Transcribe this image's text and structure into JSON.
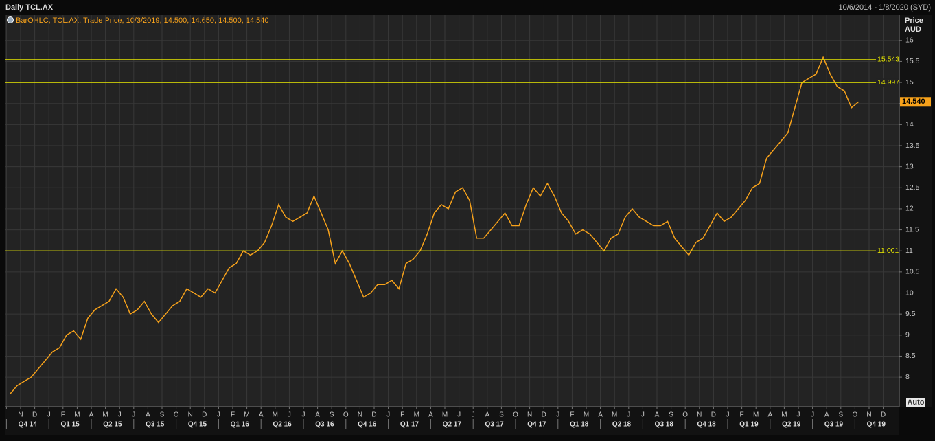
{
  "chart_data": {
    "type": "line",
    "title": "Daily TCL.AX",
    "subtitle": "10/6/2014 - 1/8/2020 (SYD)",
    "legend_text": "BarOHLC, TCL.AX, Trade Price, 10/3/2019, 14.500, 14.650, 14.500, 14.540",
    "y_label": "Price",
    "y_unit": "AUD",
    "button": "Auto",
    "ylim": [
      7.3,
      16.6
    ],
    "yticks": [
      8,
      8.5,
      9,
      9.5,
      10,
      10.5,
      11,
      11.5,
      12,
      12.5,
      13,
      13.5,
      14,
      14.5,
      15,
      15.5,
      16
    ],
    "grid": true,
    "hlines": [
      15.543,
      14.997,
      11.001
    ],
    "hline_color": "#e8e800",
    "last_price": {
      "value": 14.54,
      "label": "14.540"
    },
    "categories": [
      null,
      null,
      "N",
      null,
      "D",
      null,
      "J",
      null,
      "F",
      null,
      "M",
      null,
      "A",
      null,
      "M",
      null,
      "J",
      null,
      "J",
      null,
      "A",
      null,
      "S",
      null,
      "O",
      null,
      "N",
      null,
      "D",
      null,
      "J",
      null,
      "F",
      null,
      "M",
      null,
      "A",
      null,
      "M",
      null,
      "J",
      null,
      "J",
      null,
      "A",
      null,
      "S",
      null,
      "O",
      null,
      "N",
      null,
      "D",
      null,
      "J",
      null,
      "F",
      null,
      "M",
      null,
      "A",
      null,
      "M",
      null,
      "J",
      null,
      "J",
      null,
      "A",
      null,
      "S",
      null,
      "O",
      null,
      "N",
      null,
      "D",
      null,
      "J",
      null,
      "F",
      null,
      "M",
      null,
      "A",
      null,
      "M",
      null,
      "J",
      null,
      "J",
      null,
      "A",
      null,
      "S",
      null,
      "O",
      null,
      "N",
      null,
      "D",
      null,
      "J",
      null,
      "F",
      null,
      "M",
      null,
      "A",
      null,
      "M",
      null,
      "J",
      null,
      "J",
      null,
      "A",
      null,
      "S",
      null,
      "O",
      null,
      "N",
      null,
      "D",
      null
    ],
    "quarters": [
      "Q4 14",
      "Q1 15",
      "Q2 15",
      "Q3 15",
      "Q4 15",
      "Q1 16",
      "Q2 16",
      "Q3 16",
      "Q4 16",
      "Q1 17",
      "Q2 17",
      "Q3 17",
      "Q4 17",
      "Q1 18",
      "Q2 18",
      "Q3 18",
      "Q4 18",
      "Q1 19",
      "Q2 19",
      "Q3 19",
      "Q4 19"
    ],
    "series": [
      {
        "color": "#f7a21b",
        "values": [
          7.6,
          7.8,
          7.9,
          8.0,
          8.2,
          8.4,
          8.6,
          8.7,
          9.0,
          9.1,
          8.9,
          9.4,
          9.6,
          9.7,
          9.8,
          10.1,
          9.9,
          9.5,
          9.6,
          9.8,
          9.5,
          9.3,
          9.5,
          9.7,
          9.8,
          10.1,
          10.0,
          9.9,
          10.1,
          10.0,
          10.3,
          10.6,
          10.7,
          11.0,
          10.9,
          11.0,
          11.2,
          11.6,
          12.1,
          11.8,
          11.7,
          11.8,
          11.9,
          12.3,
          11.9,
          11.5,
          10.7,
          11.0,
          10.7,
          10.3,
          9.9,
          10.0,
          10.2,
          10.2,
          10.3,
          10.1,
          10.7,
          10.8,
          11.0,
          11.4,
          11.9,
          12.1,
          12.0,
          12.4,
          12.5,
          12.2,
          11.3,
          11.3,
          11.5,
          11.7,
          11.9,
          11.6,
          11.6,
          12.1,
          12.5,
          12.3,
          12.6,
          12.3,
          11.9,
          11.7,
          11.4,
          11.5,
          11.4,
          11.2,
          11.0,
          11.3,
          11.4,
          11.8,
          12.0,
          11.8,
          11.7,
          11.6,
          11.6,
          11.7,
          11.3,
          11.1,
          10.9,
          11.2,
          11.3,
          11.6,
          11.9,
          11.7,
          11.8,
          12.0,
          12.2,
          12.5,
          12.6,
          13.2,
          13.4,
          13.6,
          13.8,
          14.4,
          15.0,
          15.1,
          15.2,
          15.6,
          15.2,
          14.9,
          14.8,
          14.4,
          14.54,
          null,
          null,
          null,
          null,
          null
        ]
      }
    ]
  }
}
